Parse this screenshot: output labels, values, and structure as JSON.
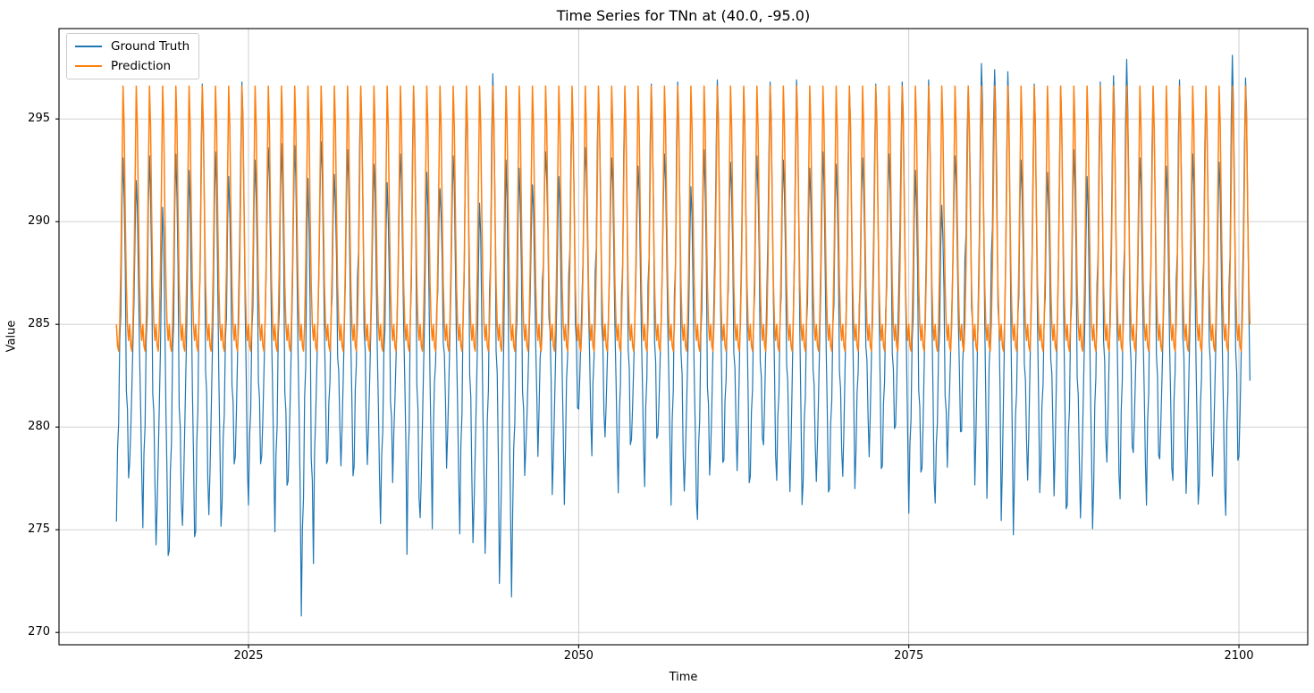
{
  "chart_data": {
    "type": "line",
    "title": "Time Series for TNn at (40.0, -95.0)",
    "xlabel": "Time",
    "ylabel": "Value",
    "xlim": [
      2010.65,
      2105.21
    ],
    "ylim": [
      269.4,
      299.4
    ],
    "x_ticks": [
      2025,
      2050,
      2075,
      2100
    ],
    "y_ticks": [
      270,
      275,
      280,
      285,
      290,
      295
    ],
    "grid": true,
    "grid_color": "#c9c9c9",
    "spine_color": "#000000",
    "legend": {
      "position": "upper-left",
      "entries": [
        {
          "label": "Ground Truth",
          "color": "#1f77b4"
        },
        {
          "label": "Prediction",
          "color": "#ff7f0e"
        }
      ]
    },
    "sampling": "monthly",
    "start_year": 2015,
    "n_years": 86,
    "months_in_last_year": 11,
    "series": [
      {
        "name": "Ground Truth",
        "color": "#1f77b4",
        "line_width": 1.2,
        "yearly_min": [
          275.4,
          277.5,
          275.1,
          273.4,
          274.0,
          274.3,
          274.9,
          274.8,
          276.3,
          277.6,
          276.2,
          277.8,
          274.9,
          276.5,
          270.8,
          277.9,
          278.4,
          277.3,
          278.1,
          277.4,
          275.3,
          278.9,
          273.8,
          274.7,
          279.9,
          277.2,
          274.8,
          273.5,
          276.1,
          271.3,
          275.6,
          278.3,
          280.8,
          275.9,
          278.9,
          280.2,
          278.6,
          278.8,
          276.8,
          278.7,
          277.1,
          278.9,
          276.2,
          276.1,
          275.5,
          277.9,
          278.4,
          276.9,
          277.6,
          278.2,
          277.4,
          275.8,
          277.3,
          276.5,
          277.0,
          276.6,
          278.8,
          277.6,
          278.1,
          279.2,
          275.8,
          277.0,
          276.3,
          279.5,
          279.8,
          276.1,
          279.4,
          274.3,
          277.5,
          276.4,
          278.2,
          275.6,
          276.2,
          274.7,
          277.1,
          277.3,
          276.5,
          278.0,
          276.2,
          277.7,
          277.4,
          275.9,
          277.2,
          276.8,
          275.7,
          277.6
        ],
        "yearly_max": [
          293.1,
          292.0,
          293.2,
          290.7,
          293.3,
          292.5,
          296.7,
          293.4,
          292.2,
          296.8,
          293.0,
          293.6,
          293.8,
          293.7,
          292.1,
          293.9,
          292.3,
          293.5,
          296.5,
          292.8,
          291.9,
          293.3,
          296.6,
          292.4,
          291.6,
          293.2,
          296.4,
          290.9,
          297.2,
          293.0,
          292.6,
          291.8,
          293.4,
          292.2,
          295.9,
          293.6,
          296.4,
          293.1,
          296.3,
          292.7,
          296.7,
          293.3,
          296.8,
          291.7,
          293.5,
          296.9,
          292.9,
          296.5,
          293.2,
          296.8,
          293.0,
          296.9,
          292.6,
          293.4,
          292.8,
          296.6,
          293.1,
          296.7,
          293.3,
          296.8,
          292.5,
          296.9,
          290.8,
          293.2,
          296.6,
          297.7,
          297.4,
          297.3,
          293.0,
          296.7,
          292.4,
          296.6,
          293.5,
          292.2,
          296.8,
          297.1,
          297.9,
          293.1,
          296.5,
          292.7,
          296.9,
          293.3,
          296.4,
          292.9,
          298.1,
          297.0
        ],
        "monthly_shape_even": [
          0.05,
          0.16,
          0.3,
          0.45,
          0.6,
          0.83,
          1.0,
          0.91,
          0.67,
          0.42,
          0.24,
          0.02
        ],
        "monthly_shape_odd": [
          0.0,
          0.2,
          0.27,
          0.5,
          0.57,
          0.86,
          1.0,
          0.89,
          0.71,
          0.36,
          0.31,
          0.12
        ]
      },
      {
        "name": "Prediction",
        "color": "#ff7f0e",
        "line_width": 1.5,
        "min_value": 283.7,
        "max_value": 296.6,
        "monthly_shape": [
          0.1,
          0.02,
          0.0,
          0.1,
          0.32,
          0.65,
          1.0,
          0.85,
          0.52,
          0.25,
          0.1,
          0.04
        ]
      }
    ]
  }
}
